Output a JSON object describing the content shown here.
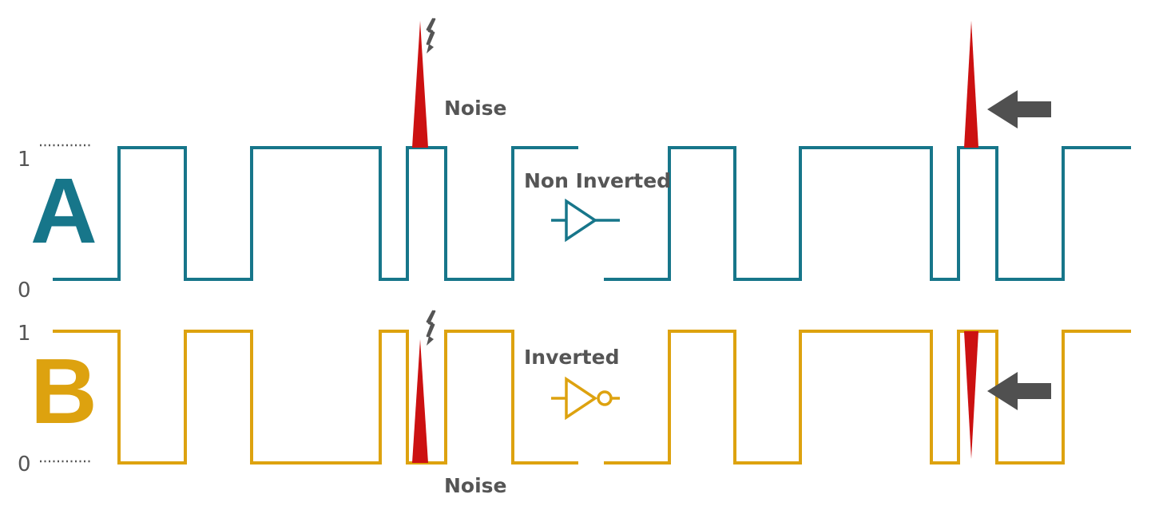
{
  "level_labels": {
    "high": "1",
    "low": "0"
  },
  "signal_a": {
    "name": "A",
    "color": "#17768a"
  },
  "signal_b": {
    "name": "B",
    "color": "#dda20f"
  },
  "gates": {
    "non_inverted_label": "Non Inverted",
    "inverted_label": "Inverted"
  },
  "noise": {
    "label_top": "Noise",
    "label_bottom": "Noise",
    "color": "#cc1111"
  },
  "icons": {
    "noise_source": "lightning-icon",
    "pointer": "arrow-left-icon"
  },
  "pointer_color": "#505050"
}
